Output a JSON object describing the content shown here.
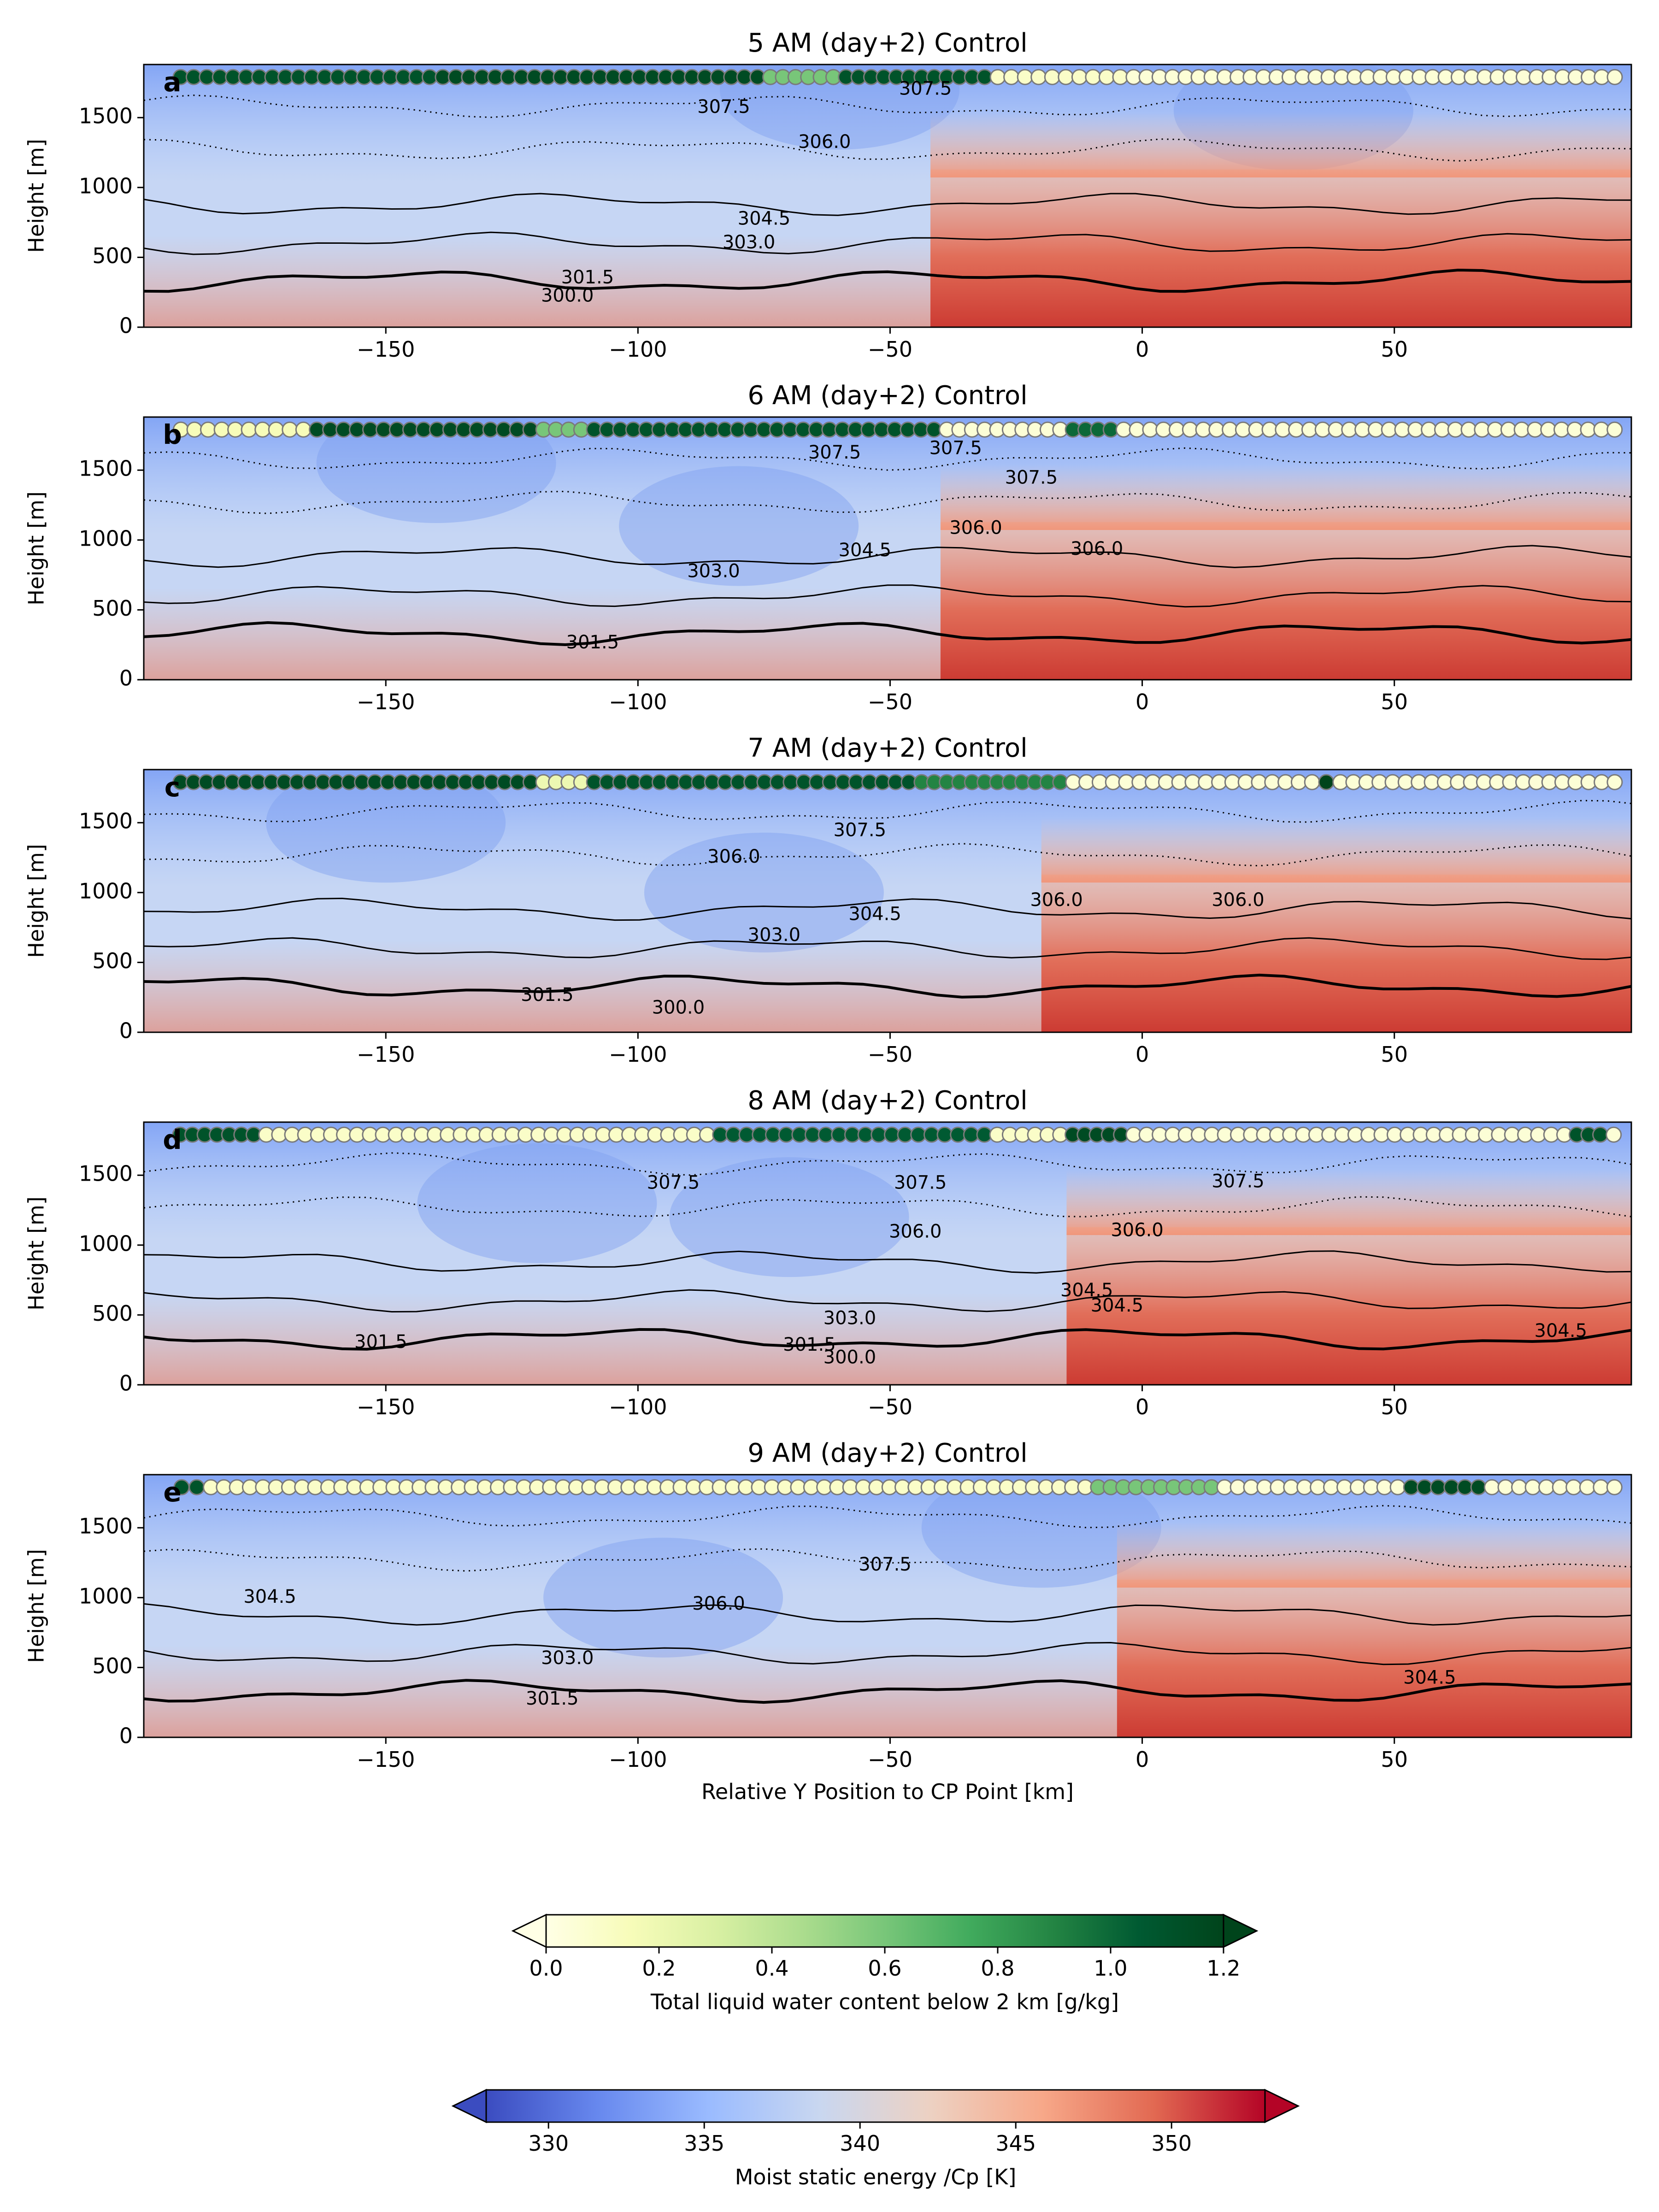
{
  "colors": {
    "mse_colormap": [
      "#3b4cc0",
      "#6788ee",
      "#9abbff",
      "#c9d7f0",
      "#edd1c2",
      "#f7a889",
      "#e26952",
      "#b40426"
    ],
    "lwc_colormap": [
      "#ffffe5",
      "#f7fcb9",
      "#d9f0a3",
      "#addd8e",
      "#78c679",
      "#41ab5d",
      "#238443",
      "#005a32",
      "#00441b"
    ],
    "contour": "#000000"
  },
  "chart_data": [
    {
      "type": "heatmap",
      "panel": "a",
      "title": "5 AM (day+2) Control",
      "xlabel": "",
      "ylabel": "Height [m]",
      "xlim": [
        -198,
        97
      ],
      "ylim": [
        0,
        1880
      ],
      "xticks": [
        -150,
        -100,
        -50,
        0,
        50
      ],
      "xtick_labels": [
        "−150",
        "−100",
        "−50",
        "0",
        "50"
      ],
      "yticks": [
        0,
        500,
        1000,
        1500
      ],
      "ytick_labels": [
        "0",
        "500",
        "1000",
        "1500"
      ],
      "lwc_dots": [
        {
          "x_from": -192,
          "x_to": -140,
          "lwc": 1.1
        },
        {
          "x_from": -140,
          "x_to": -75,
          "lwc": 1.15
        },
        {
          "x_from": -75,
          "x_to": -60,
          "lwc": 0.6
        },
        {
          "x_from": -60,
          "x_to": -30,
          "lwc": 1.1
        },
        {
          "x_from": -30,
          "x_to": -3,
          "lwc": 0.1
        },
        {
          "x_from": -3,
          "x_to": 95,
          "lwc": 0.05
        }
      ],
      "contour_labels": [
        {
          "text": "307.5",
          "x": -83,
          "y": 1570
        },
        {
          "text": "307.5",
          "x": -43,
          "y": 1700
        },
        {
          "text": "306.0",
          "x": -63,
          "y": 1320
        },
        {
          "text": "304.5",
          "x": -75,
          "y": 770
        },
        {
          "text": "303.0",
          "x": -78,
          "y": 600
        },
        {
          "text": "301.5",
          "x": -110,
          "y": 350
        },
        {
          "text": "300.0",
          "x": -114,
          "y": 220
        }
      ]
    },
    {
      "type": "heatmap",
      "panel": "b",
      "title": "6 AM (day+2) Control",
      "xlabel": "",
      "ylabel": "Height [m]",
      "xlim": [
        -198,
        97
      ],
      "ylim": [
        0,
        1880
      ],
      "xticks": [
        -150,
        -100,
        -50,
        0,
        50
      ],
      "xtick_labels": [
        "−150",
        "−100",
        "−50",
        "0",
        "50"
      ],
      "yticks": [
        0,
        500,
        1000,
        1500
      ],
      "ytick_labels": [
        "0",
        "500",
        "1000",
        "1500"
      ],
      "lwc_dots": [
        {
          "x_from": -192,
          "x_to": -165,
          "lwc": 0.15
        },
        {
          "x_from": -165,
          "x_to": -120,
          "lwc": 1.15
        },
        {
          "x_from": -120,
          "x_to": -110,
          "lwc": 0.6
        },
        {
          "x_from": -110,
          "x_to": -40,
          "lwc": 1.1
        },
        {
          "x_from": -40,
          "x_to": -15,
          "lwc": 0.05
        },
        {
          "x_from": -15,
          "x_to": -5,
          "lwc": 1.0
        },
        {
          "x_from": -5,
          "x_to": 95,
          "lwc": 0.05
        }
      ],
      "contour_labels": [
        {
          "text": "307.5",
          "x": -37,
          "y": 1650
        },
        {
          "text": "307.5",
          "x": -22,
          "y": 1440
        },
        {
          "text": "307.5",
          "x": -61,
          "y": 1620
        },
        {
          "text": "306.0",
          "x": -33,
          "y": 1080
        },
        {
          "text": "306.0",
          "x": -9,
          "y": 930
        },
        {
          "text": "304.5",
          "x": -55,
          "y": 920
        },
        {
          "text": "303.0",
          "x": -85,
          "y": 770
        },
        {
          "text": "301.5",
          "x": -109,
          "y": 260
        }
      ]
    },
    {
      "type": "heatmap",
      "panel": "c",
      "title": "7 AM (day+2) Control",
      "xlabel": "",
      "ylabel": "Height [m]",
      "xlim": [
        -198,
        97
      ],
      "ylim": [
        0,
        1880
      ],
      "xticks": [
        -150,
        -100,
        -50,
        0,
        50
      ],
      "xtick_labels": [
        "−150",
        "−100",
        "−50",
        "0",
        "50"
      ],
      "yticks": [
        0,
        500,
        1000,
        1500
      ],
      "ytick_labels": [
        "0",
        "500",
        "1000",
        "1500"
      ],
      "lwc_dots": [
        {
          "x_from": -192,
          "x_to": -120,
          "lwc": 1.15
        },
        {
          "x_from": -120,
          "x_to": -110,
          "lwc": 0.2
        },
        {
          "x_from": -110,
          "x_to": -45,
          "lwc": 1.1
        },
        {
          "x_from": -45,
          "x_to": -15,
          "lwc": 0.9
        },
        {
          "x_from": -15,
          "x_to": 35,
          "lwc": 0.05
        },
        {
          "x_from": 35,
          "x_to": 38,
          "lwc": 1.2
        },
        {
          "x_from": 38,
          "x_to": 95,
          "lwc": 0.05
        }
      ],
      "contour_labels": [
        {
          "text": "307.5",
          "x": -56,
          "y": 1440
        },
        {
          "text": "306.0",
          "x": -81,
          "y": 1250
        },
        {
          "text": "306.0",
          "x": -17,
          "y": 940
        },
        {
          "text": "306.0",
          "x": 19,
          "y": 940
        },
        {
          "text": "304.5",
          "x": -53,
          "y": 840
        },
        {
          "text": "303.0",
          "x": -73,
          "y": 690
        },
        {
          "text": "301.5",
          "x": -118,
          "y": 260
        },
        {
          "text": "300.0",
          "x": -92,
          "y": 170
        }
      ]
    },
    {
      "type": "heatmap",
      "panel": "d",
      "title": "8 AM (day+2) Control",
      "xlabel": "",
      "ylabel": "Height [m]",
      "xlim": [
        -198,
        97
      ],
      "ylim": [
        0,
        1880
      ],
      "xticks": [
        -150,
        -100,
        -50,
        0,
        50
      ],
      "xtick_labels": [
        "−150",
        "−100",
        "−50",
        "0",
        "50"
      ],
      "yticks": [
        0,
        500,
        1000,
        1500
      ],
      "ytick_labels": [
        "0",
        "500",
        "1000",
        "1500"
      ],
      "lwc_dots": [
        {
          "x_from": -192,
          "x_to": -175,
          "lwc": 1.1
        },
        {
          "x_from": -175,
          "x_to": -85,
          "lwc": 0.1
        },
        {
          "x_from": -85,
          "x_to": -30,
          "lwc": 1.05
        },
        {
          "x_from": -30,
          "x_to": -15,
          "lwc": 0.1
        },
        {
          "x_from": -15,
          "x_to": -3,
          "lwc": 1.15
        },
        {
          "x_from": -3,
          "x_to": 85,
          "lwc": 0.05
        },
        {
          "x_from": 85,
          "x_to": 92,
          "lwc": 1.1
        },
        {
          "x_from": 92,
          "x_to": 95,
          "lwc": 0.05
        }
      ],
      "contour_labels": [
        {
          "text": "307.5",
          "x": -93,
          "y": 1440
        },
        {
          "text": "307.5",
          "x": -44,
          "y": 1440
        },
        {
          "text": "307.5",
          "x": 19,
          "y": 1450
        },
        {
          "text": "306.0",
          "x": -45,
          "y": 1090
        },
        {
          "text": "306.0",
          "x": -1,
          "y": 1100
        },
        {
          "text": "304.5",
          "x": -11,
          "y": 670
        },
        {
          "text": "304.5",
          "x": -5,
          "y": 560
        },
        {
          "text": "304.5",
          "x": 83,
          "y": 380
        },
        {
          "text": "303.0",
          "x": -58,
          "y": 470
        },
        {
          "text": "301.5",
          "x": -151,
          "y": 300
        },
        {
          "text": "301.5",
          "x": -66,
          "y": 280
        },
        {
          "text": "300.0",
          "x": -58,
          "y": 190
        }
      ]
    },
    {
      "type": "heatmap",
      "panel": "e",
      "title": "9 AM (day+2) Control",
      "xlabel": "Relative Y Position to CP Point [km]",
      "ylabel": "Height [m]",
      "xlim": [
        -198,
        97
      ],
      "ylim": [
        0,
        1880
      ],
      "xticks": [
        -150,
        -100,
        -50,
        0,
        50
      ],
      "xtick_labels": [
        "−150",
        "−100",
        "−50",
        "0",
        "50"
      ],
      "yticks": [
        0,
        500,
        1000,
        1500
      ],
      "ytick_labels": [
        "0",
        "500",
        "1000",
        "1500"
      ],
      "lwc_dots": [
        {
          "x_from": -192,
          "x_to": -186,
          "lwc": 1.1
        },
        {
          "x_from": -186,
          "x_to": -10,
          "lwc": 0.1
        },
        {
          "x_from": -10,
          "x_to": 15,
          "lwc": 0.6
        },
        {
          "x_from": 15,
          "x_to": 52,
          "lwc": 0.05
        },
        {
          "x_from": 52,
          "x_to": 68,
          "lwc": 1.15
        },
        {
          "x_from": 68,
          "x_to": 95,
          "lwc": 0.05
        }
      ],
      "contour_labels": [
        {
          "text": "307.5",
          "x": -51,
          "y": 1230
        },
        {
          "text": "306.0",
          "x": -84,
          "y": 950
        },
        {
          "text": "304.5",
          "x": -173,
          "y": 1000
        },
        {
          "text": "303.0",
          "x": -114,
          "y": 560
        },
        {
          "text": "301.5",
          "x": -117,
          "y": 270
        },
        {
          "text": "304.5",
          "x": 57,
          "y": 420
        }
      ]
    }
  ],
  "colorbars": [
    {
      "label": "Total liquid water content below 2 km [g/kg]",
      "ticks": [
        0.0,
        0.2,
        0.4,
        0.6,
        0.8,
        1.0,
        1.2
      ],
      "tick_labels": [
        "0.0",
        "0.2",
        "0.4",
        "0.6",
        "0.8",
        "1.0",
        "1.2"
      ],
      "range": [
        0.0,
        1.2
      ],
      "extend": "both"
    },
    {
      "label": "Moist static energy /Cp [K]",
      "ticks": [
        330,
        335,
        340,
        345,
        350
      ],
      "tick_labels": [
        "330",
        "335",
        "340",
        "345",
        "350"
      ],
      "range": [
        328,
        353
      ],
      "extend": "both"
    }
  ]
}
